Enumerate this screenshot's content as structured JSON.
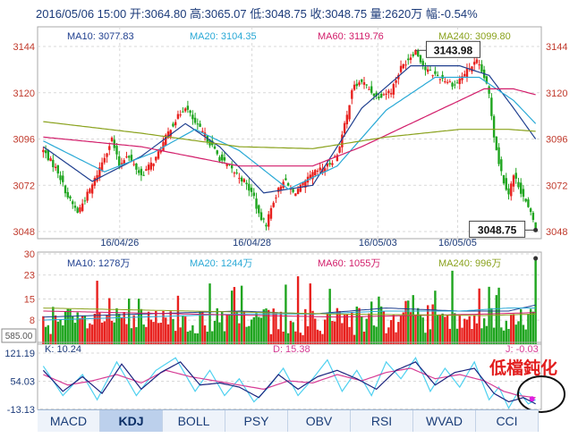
{
  "header": {
    "text": "2016/05/06 15:00 开:3064.80 高:3065.07 低:3048.75 收:3048.75 量:2620万 幅:-0.54%"
  },
  "colors": {
    "up": "#e8211e",
    "down": "#1fa51f",
    "ma10": "#1f3f8f",
    "ma20": "#29a9d6",
    "ma60": "#d21d6a",
    "ma240": "#8aa21d",
    "axis": "#c0392b",
    "grid": "#d9d9d9",
    "k_line": "#4fd1f0",
    "d_line": "#d63c95",
    "j_line": "#1a237e"
  },
  "price_panel": {
    "legend": [
      {
        "key": "ma10",
        "label": "MA10: 3077.83"
      },
      {
        "key": "ma20",
        "label": "MA20: 3104.35"
      },
      {
        "key": "ma60",
        "label": "MA60: 3119.76"
      },
      {
        "key": "ma240",
        "label": "MA240: 3099.80"
      }
    ],
    "y_ticks": [
      "3144",
      "3120",
      "3096",
      "3072",
      "3048"
    ],
    "x_ticks": [
      "16/04/26",
      "16/04/28",
      "16/05/03",
      "16/05/05"
    ],
    "high_label": "3143.98",
    "last_label": "3048.75"
  },
  "volume_panel": {
    "legend": [
      {
        "key": "ma10",
        "label": "MA10: 1278万"
      },
      {
        "key": "ma20",
        "label": "MA20: 1244万"
      },
      {
        "key": "ma60",
        "label": "MA60: 1055万"
      },
      {
        "key": "ma240",
        "label": "MA240: 996万"
      }
    ],
    "y_ticks": [
      "30",
      "23",
      "15",
      "8"
    ],
    "unit_label": "585.00"
  },
  "kdj_panel": {
    "labels": [
      {
        "key": "k",
        "label": "K: 10.24"
      },
      {
        "key": "d",
        "label": "D: 15.38"
      },
      {
        "key": "j",
        "label": "J: -0.03"
      }
    ],
    "y_ticks": [
      "121.19",
      "54.03",
      "-13.13"
    ],
    "annotation": "低檔鈍化"
  },
  "tabs": [
    "MACD",
    "KDJ",
    "BOLL",
    "PSY",
    "OBV",
    "RSI",
    "WVAD",
    "CCI"
  ],
  "active_tab": "KDJ",
  "chart_data": {
    "type": "candlestick",
    "title": "2016/05/06 15:00 开:3064.80 高:3065.07 低:3048.75 收:3048.75 量:2620万 幅:-0.54%",
    "price_ylim": [
      3048,
      3144
    ],
    "volume_ylim": [
      0,
      30
    ],
    "kdj_ylim": [
      -13.13,
      121.19
    ],
    "x_ticks": [
      "16/04/26",
      "16/04/28",
      "16/05/03",
      "16/05/05"
    ],
    "grid": true,
    "waypoints": [
      [
        0,
        3090
      ],
      [
        6,
        3079
      ],
      [
        10,
        3066
      ],
      [
        14,
        3058
      ],
      [
        20,
        3072
      ],
      [
        28,
        3096
      ],
      [
        31,
        3082
      ],
      [
        34,
        3088
      ],
      [
        40,
        3077
      ],
      [
        46,
        3086
      ],
      [
        52,
        3102
      ],
      [
        58,
        3113
      ],
      [
        62,
        3104
      ],
      [
        66,
        3098
      ],
      [
        72,
        3086
      ],
      [
        77,
        3080
      ],
      [
        82,
        3074
      ],
      [
        86,
        3066
      ],
      [
        88,
        3056
      ],
      [
        91,
        3052
      ],
      [
        94,
        3064
      ],
      [
        98,
        3075
      ],
      [
        102,
        3068
      ],
      [
        106,
        3072
      ],
      [
        110,
        3078
      ],
      [
        116,
        3082
      ],
      [
        120,
        3088
      ],
      [
        124,
        3108
      ],
      [
        126,
        3122
      ],
      [
        130,
        3126
      ],
      [
        136,
        3118
      ],
      [
        142,
        3121
      ],
      [
        146,
        3133
      ],
      [
        152,
        3142
      ],
      [
        156,
        3132
      ],
      [
        162,
        3128
      ],
      [
        168,
        3124
      ],
      [
        174,
        3133
      ],
      [
        177,
        3136
      ],
      [
        180,
        3128
      ],
      [
        182,
        3119
      ],
      [
        184,
        3098
      ],
      [
        186,
        3084
      ],
      [
        188,
        3074
      ],
      [
        190,
        3068
      ],
      [
        192,
        3077
      ],
      [
        194,
        3072
      ],
      [
        196,
        3066
      ],
      [
        198,
        3060
      ],
      [
        200,
        3054
      ],
      [
        201,
        3049
      ]
    ],
    "ma_series": [
      {
        "key": "ma10",
        "name": "MA10",
        "values": [
          [
            0,
            3092
          ],
          [
            20,
            3074
          ],
          [
            40,
            3087
          ],
          [
            58,
            3104
          ],
          [
            72,
            3092
          ],
          [
            90,
            3068
          ],
          [
            110,
            3072
          ],
          [
            130,
            3112
          ],
          [
            150,
            3134
          ],
          [
            170,
            3134
          ],
          [
            182,
            3129
          ],
          [
            192,
            3112
          ],
          [
            201,
            3096
          ]
        ]
      },
      {
        "key": "ma20",
        "name": "MA20",
        "values": [
          [
            0,
            3095
          ],
          [
            25,
            3079
          ],
          [
            45,
            3089
          ],
          [
            62,
            3101
          ],
          [
            80,
            3090
          ],
          [
            100,
            3070
          ],
          [
            120,
            3082
          ],
          [
            140,
            3111
          ],
          [
            160,
            3128
          ],
          [
            178,
            3128
          ],
          [
            192,
            3116
          ],
          [
            201,
            3104
          ]
        ]
      },
      {
        "key": "ma60",
        "name": "MA60",
        "values": [
          [
            0,
            3097
          ],
          [
            40,
            3092
          ],
          [
            80,
            3082
          ],
          [
            110,
            3082
          ],
          [
            130,
            3092
          ],
          [
            160,
            3110
          ],
          [
            180,
            3122
          ],
          [
            192,
            3122
          ],
          [
            201,
            3119
          ]
        ]
      },
      {
        "key": "ma240",
        "name": "MA240",
        "values": [
          [
            0,
            3105
          ],
          [
            40,
            3099
          ],
          [
            80,
            3092
          ],
          [
            110,
            3091
          ],
          [
            140,
            3097
          ],
          [
            170,
            3101
          ],
          [
            190,
            3101
          ],
          [
            201,
            3100
          ]
        ]
      }
    ],
    "volume_ma": [
      {
        "key": "ma10",
        "values": [
          [
            0,
            9
          ],
          [
            40,
            10
          ],
          [
            80,
            11
          ],
          [
            110,
            10
          ],
          [
            140,
            12
          ],
          [
            170,
            11
          ],
          [
            190,
            11
          ],
          [
            201,
            13
          ]
        ]
      },
      {
        "key": "ma20",
        "values": [
          [
            0,
            8
          ],
          [
            40,
            9
          ],
          [
            80,
            10
          ],
          [
            110,
            10
          ],
          [
            140,
            11
          ],
          [
            170,
            11
          ],
          [
            190,
            12
          ],
          [
            201,
            12
          ]
        ]
      },
      {
        "key": "ma60",
        "values": [
          [
            0,
            11
          ],
          [
            60,
            10
          ],
          [
            120,
            9
          ],
          [
            180,
            10
          ],
          [
            201,
            10.5
          ]
        ]
      },
      {
        "key": "ma240",
        "values": [
          [
            0,
            12
          ],
          [
            60,
            11
          ],
          [
            120,
            10
          ],
          [
            180,
            9.5
          ],
          [
            201,
            10
          ]
        ]
      }
    ],
    "kdj_series": [
      {
        "key": "k",
        "name": "K",
        "values": [
          [
            0,
            90
          ],
          [
            8,
            20
          ],
          [
            16,
            70
          ],
          [
            22,
            10
          ],
          [
            30,
            100
          ],
          [
            38,
            20
          ],
          [
            46,
            80
          ],
          [
            54,
            110
          ],
          [
            62,
            30
          ],
          [
            68,
            80
          ],
          [
            74,
            20
          ],
          [
            80,
            60
          ],
          [
            86,
            5
          ],
          [
            92,
            40
          ],
          [
            98,
            85
          ],
          [
            104,
            20
          ],
          [
            110,
            60
          ],
          [
            116,
            105
          ],
          [
            122,
            30
          ],
          [
            128,
            80
          ],
          [
            134,
            20
          ],
          [
            140,
            100
          ],
          [
            146,
            60
          ],
          [
            152,
            110
          ],
          [
            158,
            30
          ],
          [
            164,
            85
          ],
          [
            170,
            40
          ],
          [
            176,
            100
          ],
          [
            182,
            10
          ],
          [
            186,
            40
          ],
          [
            190,
            -10
          ],
          [
            194,
            30
          ],
          [
            198,
            0
          ],
          [
            201,
            10
          ]
        ]
      },
      {
        "key": "d",
        "name": "D",
        "values": [
          [
            0,
            70
          ],
          [
            10,
            45
          ],
          [
            20,
            55
          ],
          [
            30,
            70
          ],
          [
            40,
            50
          ],
          [
            50,
            80
          ],
          [
            60,
            65
          ],
          [
            70,
            55
          ],
          [
            80,
            45
          ],
          [
            90,
            35
          ],
          [
            100,
            55
          ],
          [
            110,
            50
          ],
          [
            120,
            70
          ],
          [
            130,
            55
          ],
          [
            140,
            75
          ],
          [
            150,
            85
          ],
          [
            160,
            60
          ],
          [
            170,
            70
          ],
          [
            180,
            55
          ],
          [
            188,
            30
          ],
          [
            194,
            20
          ],
          [
            201,
            15
          ]
        ]
      },
      {
        "key": "j",
        "name": "J",
        "values": [
          [
            0,
            80
          ],
          [
            8,
            30
          ],
          [
            16,
            65
          ],
          [
            24,
            25
          ],
          [
            32,
            95
          ],
          [
            40,
            35
          ],
          [
            48,
            75
          ],
          [
            56,
            100
          ],
          [
            64,
            45
          ],
          [
            72,
            50
          ],
          [
            80,
            40
          ],
          [
            88,
            15
          ],
          [
            96,
            70
          ],
          [
            104,
            35
          ],
          [
            112,
            65
          ],
          [
            120,
            80
          ],
          [
            128,
            60
          ],
          [
            136,
            35
          ],
          [
            144,
            80
          ],
          [
            152,
            100
          ],
          [
            160,
            45
          ],
          [
            168,
            75
          ],
          [
            176,
            85
          ],
          [
            184,
            25
          ],
          [
            190,
            5
          ],
          [
            196,
            15
          ],
          [
            201,
            0
          ]
        ]
      }
    ]
  }
}
